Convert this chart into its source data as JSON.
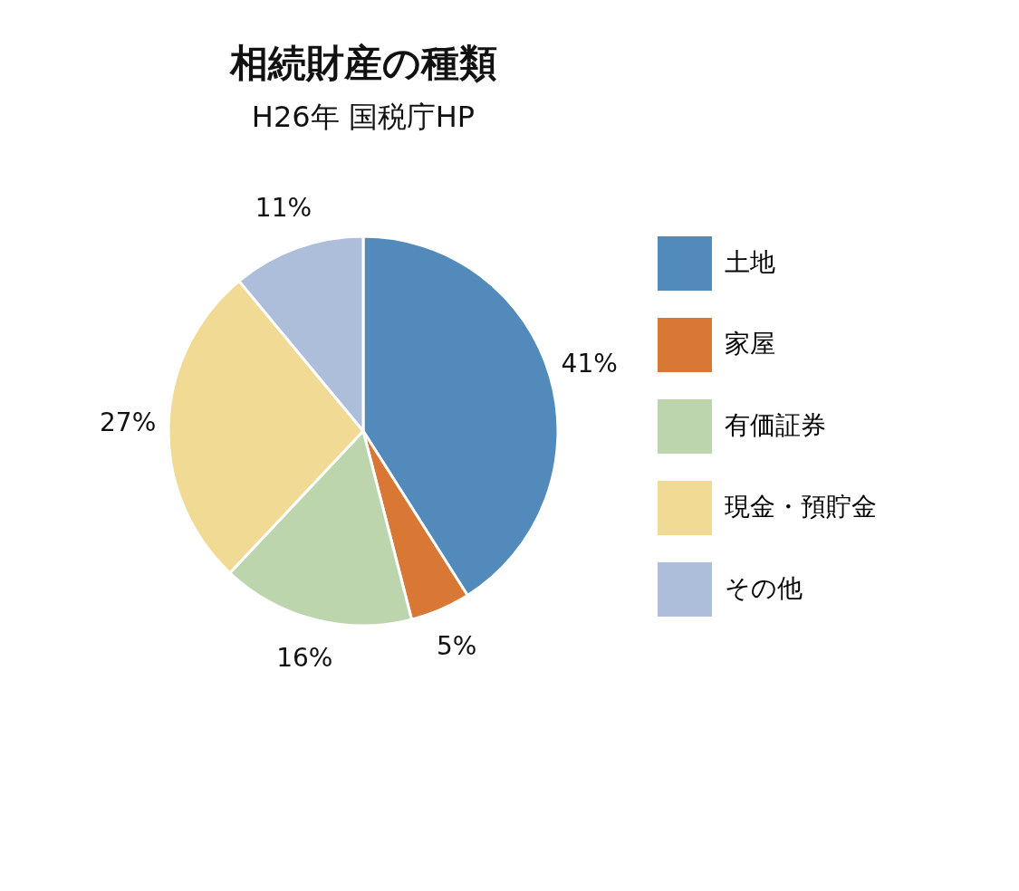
{
  "chart_data": {
    "type": "pie",
    "title": "相続財産の種類",
    "subtitle": "H26年 国税庁HP",
    "categories": [
      "土地",
      "家屋",
      "有価証券",
      "現金・預貯金",
      "その他"
    ],
    "values": [
      41,
      5,
      16,
      27,
      11
    ],
    "colors": [
      "#528bbb",
      "#d97735",
      "#bdd5ad",
      "#f1da94",
      "#adbedb"
    ],
    "value_labels": [
      "41%",
      "5%",
      "16%",
      "27%",
      "11%"
    ],
    "legend": "right"
  }
}
